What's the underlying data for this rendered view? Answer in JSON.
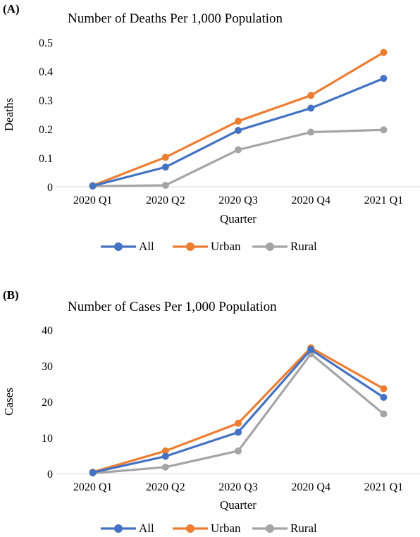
{
  "colors": {
    "All": "#4472C4",
    "Urban": "#ED7D31",
    "Rural": "#A5A5A5"
  },
  "chart_data": [
    {
      "type": "line",
      "panel_label": "(A)",
      "title": "Number of Deaths Per 1,000 Population",
      "xlabel": "Quarter",
      "ylabel": "Deaths",
      "categories": [
        "2020 Q1",
        "2020 Q2",
        "2020 Q3",
        "2020 Q4",
        "2021 Q1"
      ],
      "ylim": [
        0,
        0.5
      ],
      "yticks": [
        0,
        0.1,
        0.2,
        0.3,
        0.4,
        0.5
      ],
      "ytick_labels": [
        "0",
        "0.1",
        "0.2",
        "0.3",
        "0.4",
        "0.5"
      ],
      "grid": false,
      "legend": "bottom",
      "series": [
        {
          "name": "All",
          "values": [
            0.003,
            0.068,
            0.195,
            0.272,
            0.375
          ]
        },
        {
          "name": "Urban",
          "values": [
            0.004,
            0.102,
            0.227,
            0.316,
            0.465
          ]
        },
        {
          "name": "Rural",
          "values": [
            0.002,
            0.005,
            0.128,
            0.189,
            0.197
          ]
        }
      ]
    },
    {
      "type": "line",
      "panel_label": "(B)",
      "title": "Number of Cases Per 1,000 Population",
      "xlabel": "Quarter",
      "ylabel": "Cases",
      "categories": [
        "2020 Q1",
        "2020 Q2",
        "2020 Q3",
        "2020 Q4",
        "2021 Q1"
      ],
      "ylim": [
        0,
        40
      ],
      "yticks": [
        0,
        10,
        20,
        30,
        40
      ],
      "ytick_labels": [
        "0",
        "10",
        "20",
        "30",
        "40"
      ],
      "grid": false,
      "legend": "bottom",
      "series": [
        {
          "name": "All",
          "values": [
            0.3,
            4.8,
            11.5,
            34.5,
            21.2
          ]
        },
        {
          "name": "Urban",
          "values": [
            0.4,
            6.3,
            14.0,
            35.0,
            23.6
          ]
        },
        {
          "name": "Rural",
          "values": [
            0.1,
            1.8,
            6.3,
            33.3,
            16.6
          ]
        }
      ]
    }
  ]
}
